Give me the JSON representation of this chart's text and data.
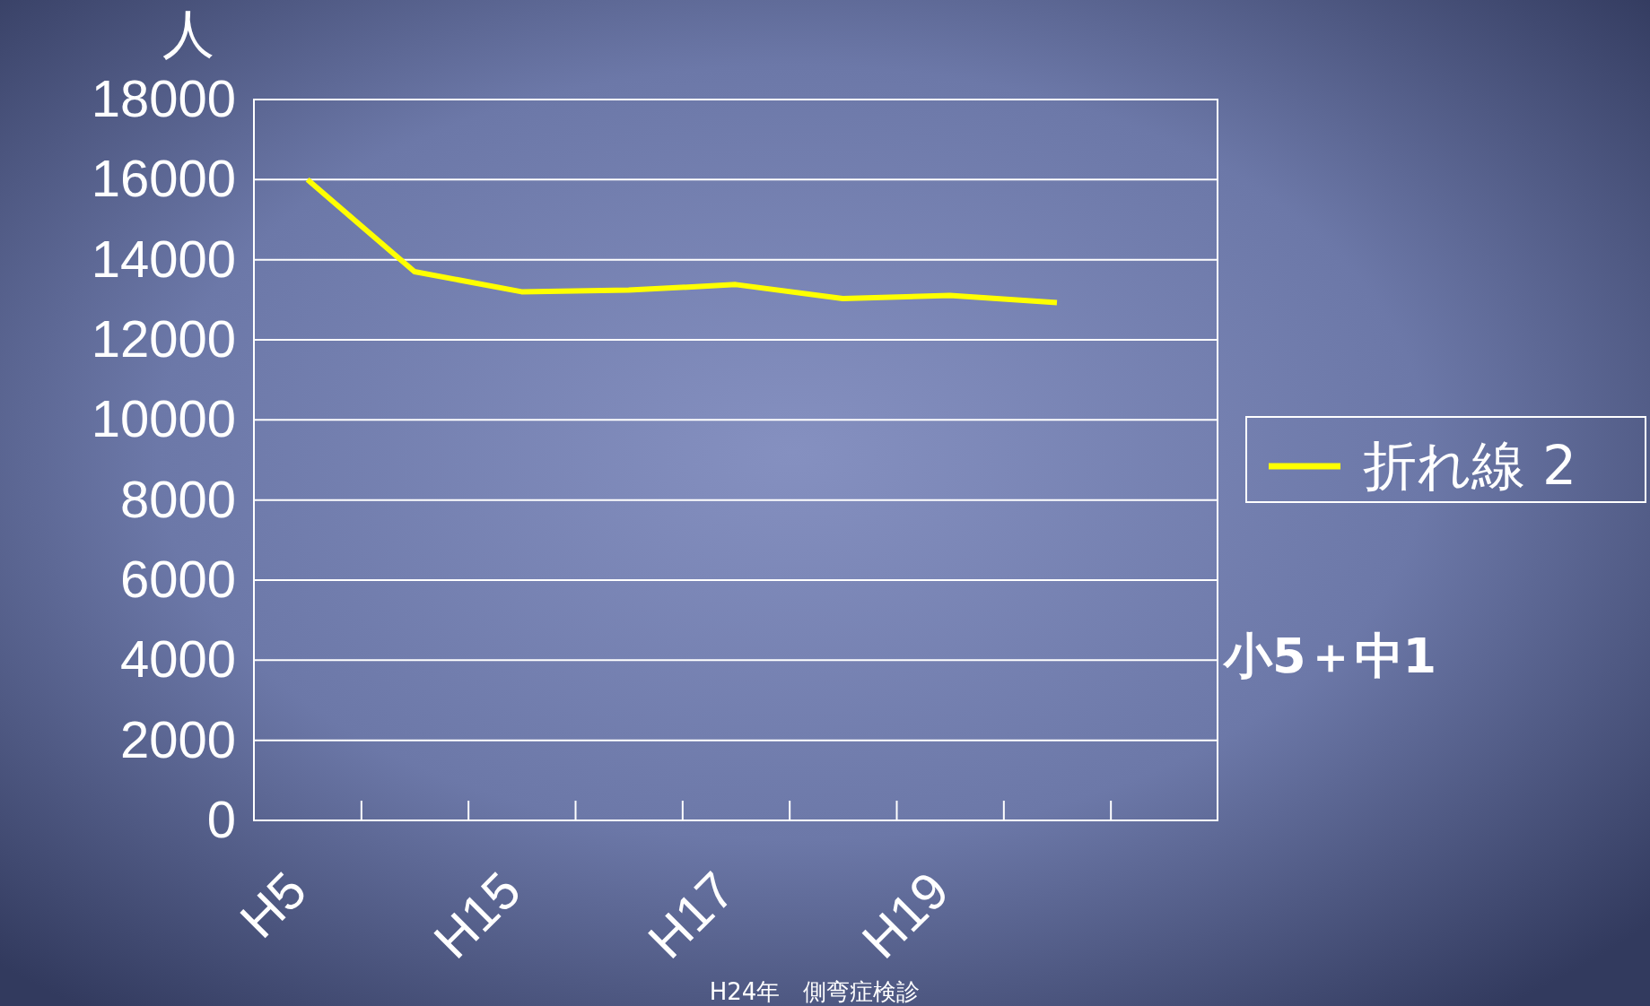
{
  "chart_data": {
    "type": "line",
    "ylabel": "人",
    "title": "H24年　側弯症検診",
    "categories": [
      "H5",
      null,
      "H15",
      null,
      "H17",
      null,
      "H19",
      null,
      null
    ],
    "series": [
      {
        "name": "折れ線 2",
        "color": "#ffff00",
        "values": [
          16000,
          13700,
          13200,
          13240,
          13380,
          13030,
          13110,
          12930,
          null
        ]
      }
    ],
    "ylim": [
      0,
      18000
    ],
    "yticks": [
      0,
      2000,
      4000,
      6000,
      8000,
      10000,
      12000,
      14000,
      16000,
      18000
    ],
    "grid": "y",
    "legend": "right",
    "marker": "none",
    "line_style": "solid",
    "annotations": [
      "小5＋中1"
    ]
  }
}
